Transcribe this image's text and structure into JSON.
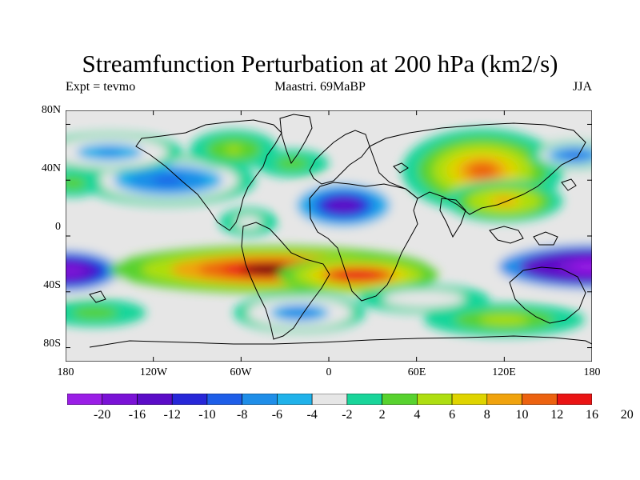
{
  "title": "Streamfunction Perturbation at 200 hPa (km2/s)",
  "subtitle_left": "Expt = tevmo",
  "subtitle_center": "Maastri. 69MaBP",
  "subtitle_right": "JJA",
  "lat_labels": [
    "80N",
    "40N",
    "0",
    "40S",
    "80S"
  ],
  "lon_labels": [
    "180",
    "120W",
    "60W",
    "0",
    "60E",
    "120E",
    "180"
  ],
  "colorbar": {
    "labels": [
      "-20",
      "-16",
      "-12",
      "-10",
      "-8",
      "-6",
      "-4",
      "-2",
      "2",
      "4",
      "6",
      "8",
      "10",
      "12",
      "16",
      "20"
    ],
    "colors": [
      "#9a1ee6",
      "#7a12d6",
      "#5b0cc7",
      "#2727d8",
      "#1e5ee8",
      "#1f8ee8",
      "#20b2ea",
      "#e6e6e6",
      "#19d59a",
      "#58d22f",
      "#aede11",
      "#dfd400",
      "#f0a30e",
      "#ec6210",
      "#ea1414"
    ]
  },
  "map_fields": {
    "background": "#e6e6e6",
    "anomalies": [
      {
        "name": "south-pacific-low-west",
        "lon": -180,
        "lat": -25,
        "value": -20,
        "rx": 45,
        "ry": 18
      },
      {
        "name": "south-pacific-low-east",
        "lon": 180,
        "lat": -22,
        "value": -22,
        "rx": 80,
        "ry": 20
      },
      {
        "name": "south-atlantic-high",
        "lon": -40,
        "lat": -24,
        "value": 16,
        "rx": 110,
        "ry": 17
      },
      {
        "name": "south-atlantic-high-east",
        "lon": 20,
        "lat": -28,
        "value": 14,
        "rx": 55,
        "ry": 13
      },
      {
        "name": "africa-low",
        "lon": 10,
        "lat": 22,
        "value": -14,
        "rx": 40,
        "ry": 19
      },
      {
        "name": "north-pacific-low",
        "lon": -110,
        "lat": 40,
        "value": -9,
        "rx": 60,
        "ry": 18
      },
      {
        "name": "northeast-pacific-low",
        "lon": -150,
        "lat": 60,
        "value": -6,
        "rx": 50,
        "ry": 14
      },
      {
        "name": "asia-high",
        "lon": 105,
        "lat": 47,
        "value": 10,
        "rx": 55,
        "ry": 30
      },
      {
        "name": "asia-high-south",
        "lon": 120,
        "lat": 25,
        "value": 8,
        "rx": 40,
        "ry": 15
      },
      {
        "name": "northwest-pacific-low",
        "lon": 168,
        "lat": 58,
        "value": -9,
        "rx": 30,
        "ry": 10
      },
      {
        "name": "south-ocean-low",
        "lon": -20,
        "lat": -55,
        "value": -7,
        "rx": 45,
        "ry": 14
      },
      {
        "name": "indian-ocean-low",
        "lon": 65,
        "lat": -45,
        "value": -4,
        "rx": 45,
        "ry": 10
      },
      {
        "name": "southern-high",
        "lon": 120,
        "lat": -60,
        "value": 5,
        "rx": 55,
        "ry": 12
      },
      {
        "name": "greenland-high",
        "lon": -65,
        "lat": 62,
        "value": 4,
        "rx": 30,
        "ry": 14
      },
      {
        "name": "europe-high",
        "lon": -25,
        "lat": 52,
        "value": 3,
        "rx": 25,
        "ry": 10
      },
      {
        "name": "tropical-atlantic-low",
        "lon": -55,
        "lat": 10,
        "value": -3,
        "rx": 20,
        "ry": 10
      },
      {
        "name": "west-north-pacific-high",
        "lon": -175,
        "lat": 38,
        "value": 3,
        "rx": 20,
        "ry": 10
      },
      {
        "name": "south-pacific-high",
        "lon": -160,
        "lat": -55,
        "value": 3,
        "rx": 35,
        "ry": 10
      }
    ]
  }
}
